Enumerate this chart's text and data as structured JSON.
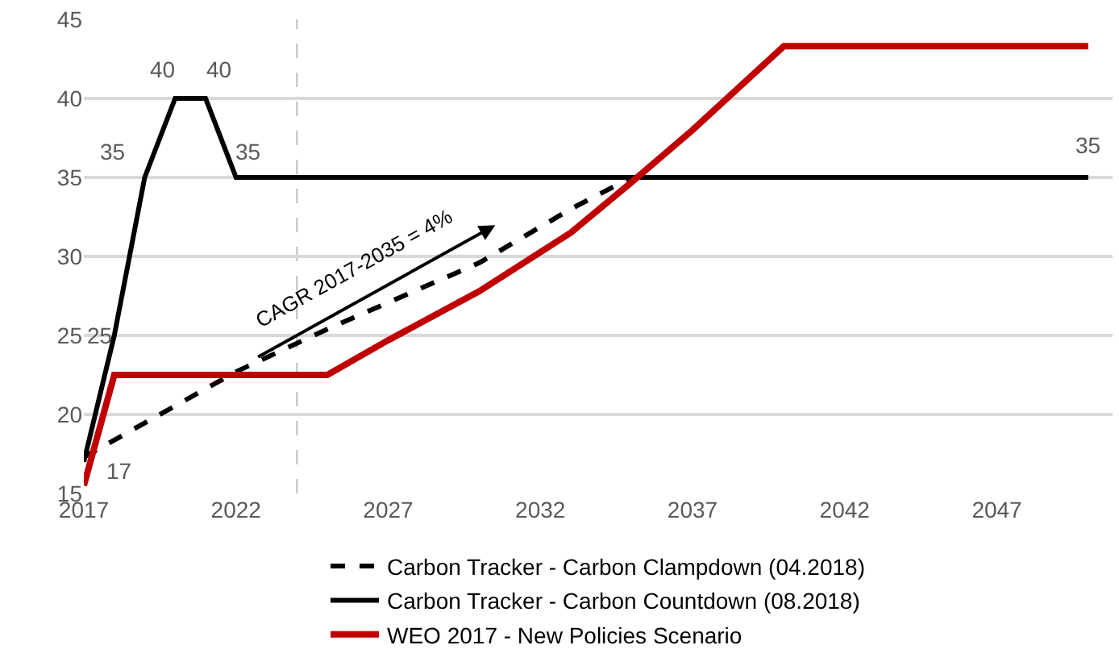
{
  "chart_data": {
    "type": "line",
    "series": [
      {
        "name": "Carbon Tracker - Carbon Clampdown (04.2018)",
        "color": "#000000",
        "line_style": "dashed",
        "x": [
          2017,
          2022,
          2025,
          2030,
          2033,
          2035,
          2050
        ],
        "values": [
          17.3,
          22.7,
          25.4,
          29.6,
          33,
          35,
          35
        ]
      },
      {
        "name": "Carbon Tracker - Carbon Countdown (08.2018)",
        "color": "#000000",
        "line_style": "solid",
        "x": [
          2017,
          2018,
          2019,
          2020,
          2021,
          2022,
          2050
        ],
        "values": [
          17,
          25,
          35,
          40,
          40,
          35,
          35
        ],
        "value_labels": [
          "17",
          "25",
          "35",
          "40",
          "40",
          "35",
          "35"
        ]
      },
      {
        "name": "WEO 2017 - New Policies Scenario",
        "color": "#c00000",
        "line_style": "solid",
        "x": [
          2017,
          2018,
          2025,
          2027,
          2030,
          2033,
          2035,
          2037,
          2040,
          2050
        ],
        "values": [
          15.5,
          22.5,
          22.5,
          24.7,
          27.8,
          31.5,
          34.7,
          38,
          43.3,
          43.3
        ]
      }
    ],
    "xlim": [
      2017,
      2050.8
    ],
    "xticks": [
      2017,
      2022,
      2027,
      2032,
      2037,
      2042,
      2047
    ],
    "ylim": [
      15,
      45
    ],
    "yticks": [
      15,
      20,
      25,
      30,
      35,
      40,
      45
    ],
    "grid": "y",
    "legend": "bottom",
    "marker": "none",
    "ref_lines": [
      {
        "axis": "x",
        "value": 2024,
        "color": "#bfbfbf",
        "line_style": "dashed"
      }
    ],
    "annotations": [
      "CAGR 2017-2035 = 4%"
    ]
  }
}
